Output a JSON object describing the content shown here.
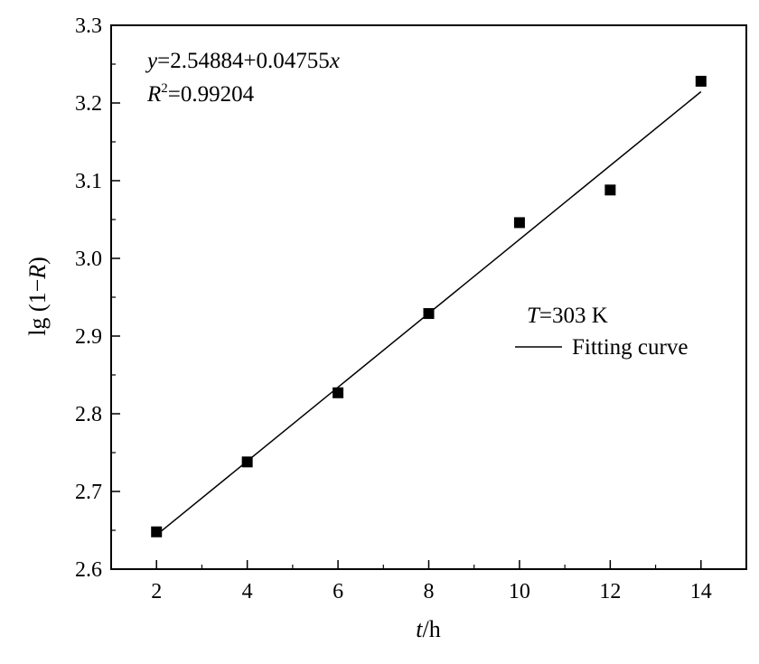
{
  "chart_data": {
    "type": "scatter",
    "xlabel_var": "t",
    "xlabel_unit": "/h",
    "ylabel_prefix": "lg (1−",
    "ylabel_var": "R",
    "ylabel_suffix": ")",
    "xlim": [
      1,
      15
    ],
    "ylim": [
      2.6,
      3.3
    ],
    "x_ticks": [
      2,
      4,
      6,
      8,
      10,
      12,
      14
    ],
    "x_tick_labels": [
      "2",
      "4",
      "6",
      "8",
      "10",
      "12",
      "14"
    ],
    "y_ticks": [
      2.6,
      2.7,
      2.8,
      2.9,
      3.0,
      3.1,
      3.2,
      3.3
    ],
    "y_tick_labels": [
      "2.6",
      "2.7",
      "2.8",
      "2.9",
      "3.0",
      "3.1",
      "3.2",
      "3.3"
    ],
    "grid": false,
    "legend_position": "right-center",
    "series": [
      {
        "kind": "points",
        "marker": "square",
        "color": "#000000",
        "x": [
          2,
          4,
          6,
          8,
          10,
          12,
          14
        ],
        "y": [
          2.648,
          2.738,
          2.827,
          2.929,
          3.046,
          3.088,
          3.228
        ]
      },
      {
        "kind": "fit-line",
        "name": "Fitting curve",
        "color": "#000000",
        "intercept": 2.54884,
        "slope": 0.04755,
        "x_range": [
          2,
          14
        ]
      }
    ],
    "annotations": {
      "equation": {
        "y_var": "y",
        "equals": "=2.54884+0.04755",
        "x_var": "x"
      },
      "r_squared": {
        "r_var": "R",
        "sup": "2",
        "value": "=0.99204"
      },
      "condition": {
        "var": "T",
        "value": "=303 K"
      }
    }
  }
}
